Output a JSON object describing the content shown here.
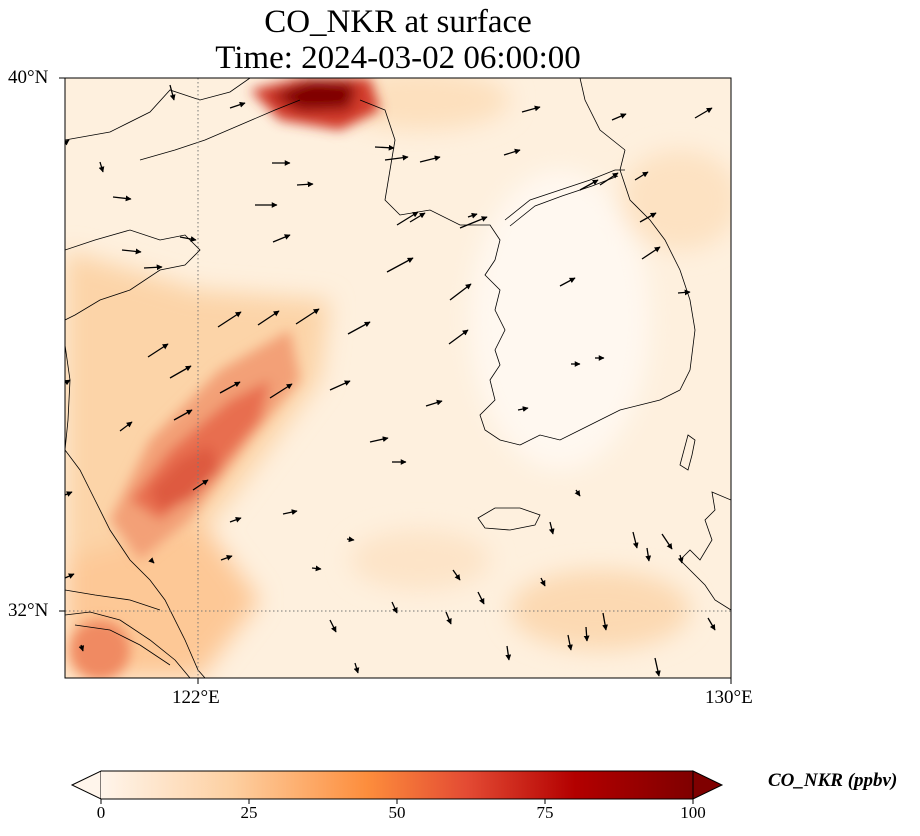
{
  "title": {
    "line1": "CO_NKR at surface",
    "line2": "Time: 2024-03-02 06:00:00"
  },
  "axes": {
    "lat_labels": [
      "40°N",
      "32°N"
    ],
    "lon_labels": [
      "122°E",
      "130°E"
    ],
    "gridlines": "dotted at 122°E and 32°N"
  },
  "colorbar": {
    "label": "CO_NKR (ppbv)",
    "ticks": [
      "0",
      "25",
      "50",
      "75",
      "100"
    ],
    "colormap": [
      "#fff5eb",
      "#fdd0a2",
      "#fd8d3c",
      "#e34a33",
      "#b30000",
      "#7f0000"
    ],
    "extend": "both"
  },
  "field": {
    "variable": "CO_NKR",
    "units": "ppbv",
    "level": "surface",
    "features": [
      {
        "region": "northern edge near 39.8°N 123°E",
        "approx_value": 100
      },
      {
        "region": "band from 33.5°N 120.5°E to 35.5°N 123°E",
        "approx_value": 45
      },
      {
        "region": "east China coast",
        "approx_value": 30
      },
      {
        "region": "Korean peninsula interior",
        "approx_value": 3
      }
    ]
  },
  "wind_vectors": "black arrows, predominantly west-southwesterly flow in the north and center, southward flow in the southeast"
}
